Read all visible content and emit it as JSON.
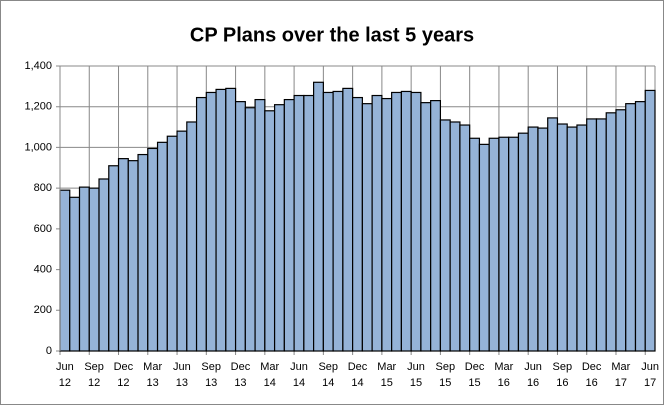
{
  "chart_data": {
    "type": "bar",
    "title": "CP Plans over the last 5 years",
    "categories": [
      "Jun 12",
      null,
      null,
      "Sep 12",
      null,
      null,
      "Dec 12",
      null,
      null,
      "Mar 13",
      null,
      null,
      "Jun 13",
      null,
      null,
      "Sep 13",
      null,
      null,
      "Dec 13",
      null,
      null,
      "Mar 14",
      null,
      null,
      "Jun 14",
      null,
      null,
      "Sep 14",
      null,
      null,
      "Dec 14",
      null,
      null,
      "Mar 15",
      null,
      null,
      "Jun 15",
      null,
      null,
      "Sep 15",
      null,
      null,
      "Dec 15",
      null,
      null,
      "Mar 16",
      null,
      null,
      "Jun 16",
      null,
      null,
      "Sep 16",
      null,
      null,
      "Dec 16",
      null,
      null,
      "Mar 17",
      null,
      null,
      "Jun 17"
    ],
    "values": [
      790,
      755,
      805,
      800,
      845,
      910,
      945,
      935,
      965,
      995,
      1025,
      1055,
      1080,
      1125,
      1245,
      1270,
      1285,
      1290,
      1225,
      1195,
      1235,
      1180,
      1210,
      1235,
      1255,
      1255,
      1320,
      1270,
      1275,
      1290,
      1245,
      1215,
      1255,
      1240,
      1270,
      1275,
      1270,
      1220,
      1230,
      1135,
      1125,
      1110,
      1045,
      1015,
      1045,
      1050,
      1050,
      1070,
      1100,
      1095,
      1145,
      1115,
      1100,
      1110,
      1140,
      1140,
      1170,
      1185,
      1215,
      1225,
      1280
    ],
    "color": "#95b3d7",
    "ylim": [
      0,
      1400
    ],
    "yticks": [
      0,
      200,
      400,
      600,
      800,
      {
        "value": 1000,
        "label": "1,000"
      },
      {
        "value": 1200,
        "label": "1,200"
      },
      {
        "value": 1400,
        "label": "1,400"
      }
    ],
    "grid": true
  }
}
